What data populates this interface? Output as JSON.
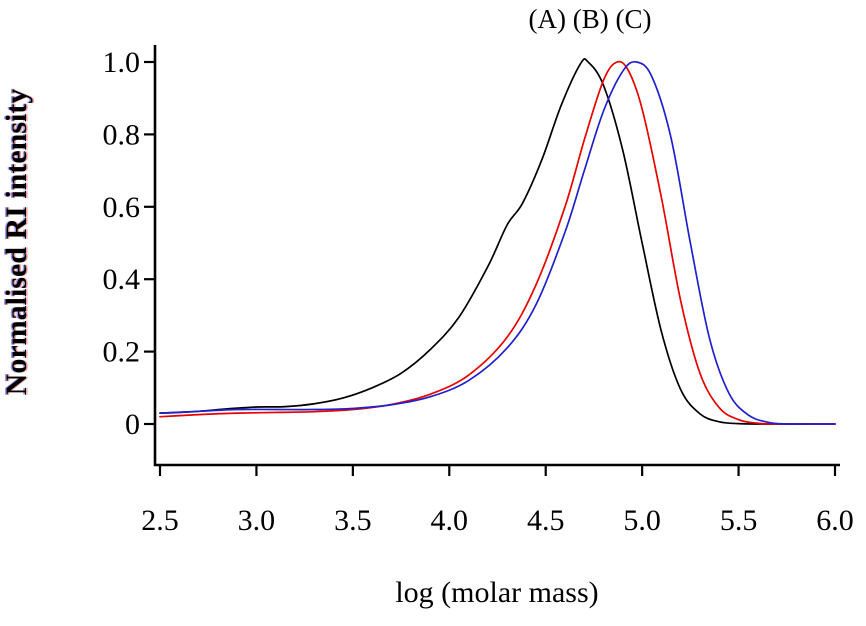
{
  "chart_data": {
    "type": "line",
    "title": "(A) (B) (C)",
    "xlabel": "log (molar mass)",
    "ylabel": "Normalised RI intensity",
    "xlim": [
      2.5,
      6.0
    ],
    "ylim": [
      0,
      1.0
    ],
    "grid": false,
    "legend_position": "top-as-title",
    "x_ticks": [
      2.5,
      3.0,
      3.5,
      4.0,
      4.5,
      5.0,
      5.5,
      6.0
    ],
    "x_tick_labels": [
      "2.5",
      "3.0",
      "3.5",
      "4.0",
      "4.5",
      "5.0",
      "5.5",
      "6.0"
    ],
    "y_ticks": [
      0,
      0.2,
      0.4,
      0.6,
      0.8,
      1.0
    ],
    "y_tick_labels": [
      "0",
      "0.2",
      "0.4",
      "0.6",
      "0.8",
      "1.0"
    ],
    "axis_color": "#000000",
    "series": [
      {
        "name": "A",
        "color": "#000000",
        "peak_x": 4.7,
        "points": [
          [
            2.5,
            0.03
          ],
          [
            2.6,
            0.032
          ],
          [
            2.7,
            0.035
          ],
          [
            2.85,
            0.042
          ],
          [
            3.0,
            0.047
          ],
          [
            3.15,
            0.048
          ],
          [
            3.3,
            0.056
          ],
          [
            3.45,
            0.072
          ],
          [
            3.6,
            0.1
          ],
          [
            3.75,
            0.14
          ],
          [
            3.9,
            0.205
          ],
          [
            4.05,
            0.295
          ],
          [
            4.2,
            0.435
          ],
          [
            4.3,
            0.55
          ],
          [
            4.38,
            0.61
          ],
          [
            4.48,
            0.73
          ],
          [
            4.58,
            0.88
          ],
          [
            4.68,
            0.995
          ],
          [
            4.72,
            1.0
          ],
          [
            4.8,
            0.935
          ],
          [
            4.9,
            0.755
          ],
          [
            5.0,
            0.5
          ],
          [
            5.1,
            0.255
          ],
          [
            5.2,
            0.095
          ],
          [
            5.3,
            0.028
          ],
          [
            5.4,
            0.006
          ],
          [
            5.5,
            0.001
          ],
          [
            5.6,
            0.0
          ],
          [
            5.8,
            0.0
          ],
          [
            6.0,
            0.0
          ]
        ]
      },
      {
        "name": "B",
        "color": "#e60000",
        "peak_x": 4.85,
        "points": [
          [
            2.5,
            0.02
          ],
          [
            2.7,
            0.026
          ],
          [
            2.9,
            0.03
          ],
          [
            3.1,
            0.032
          ],
          [
            3.3,
            0.034
          ],
          [
            3.5,
            0.04
          ],
          [
            3.7,
            0.054
          ],
          [
            3.9,
            0.082
          ],
          [
            4.1,
            0.135
          ],
          [
            4.3,
            0.24
          ],
          [
            4.45,
            0.385
          ],
          [
            4.6,
            0.6
          ],
          [
            4.7,
            0.785
          ],
          [
            4.8,
            0.95
          ],
          [
            4.87,
            1.0
          ],
          [
            4.93,
            0.975
          ],
          [
            5.0,
            0.87
          ],
          [
            5.1,
            0.625
          ],
          [
            5.2,
            0.34
          ],
          [
            5.3,
            0.14
          ],
          [
            5.4,
            0.045
          ],
          [
            5.5,
            0.012
          ],
          [
            5.6,
            0.002
          ],
          [
            5.7,
            0.0
          ],
          [
            5.85,
            0.0
          ],
          [
            6.0,
            0.0
          ]
        ]
      },
      {
        "name": "C",
        "color": "#2020cc",
        "peak_x": 4.95,
        "points": [
          [
            2.5,
            0.03
          ],
          [
            2.7,
            0.035
          ],
          [
            2.9,
            0.04
          ],
          [
            3.1,
            0.04
          ],
          [
            3.3,
            0.04
          ],
          [
            3.5,
            0.043
          ],
          [
            3.7,
            0.053
          ],
          [
            3.9,
            0.075
          ],
          [
            4.1,
            0.12
          ],
          [
            4.3,
            0.21
          ],
          [
            4.45,
            0.33
          ],
          [
            4.6,
            0.53
          ],
          [
            4.7,
            0.7
          ],
          [
            4.8,
            0.865
          ],
          [
            4.9,
            0.975
          ],
          [
            4.97,
            1.0
          ],
          [
            5.05,
            0.96
          ],
          [
            5.15,
            0.79
          ],
          [
            5.25,
            0.5
          ],
          [
            5.35,
            0.235
          ],
          [
            5.45,
            0.085
          ],
          [
            5.55,
            0.025
          ],
          [
            5.65,
            0.005
          ],
          [
            5.75,
            0.0
          ],
          [
            5.9,
            0.0
          ],
          [
            6.0,
            0.0
          ]
        ]
      }
    ]
  }
}
